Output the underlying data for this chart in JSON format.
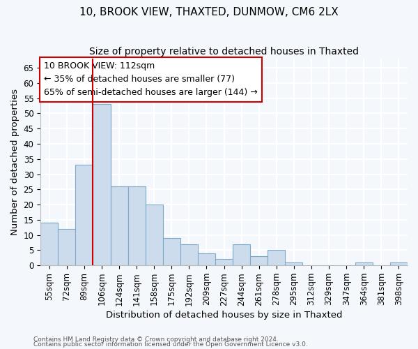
{
  "title1": "10, BROOK VIEW, THAXTED, DUNMOW, CM6 2LX",
  "title2": "Size of property relative to detached houses in Thaxted",
  "xlabel": "Distribution of detached houses by size in Thaxted",
  "ylabel": "Number of detached properties",
  "categories": [
    "55sqm",
    "72sqm",
    "89sqm",
    "106sqm",
    "124sqm",
    "141sqm",
    "158sqm",
    "175sqm",
    "192sqm",
    "209sqm",
    "227sqm",
    "244sqm",
    "261sqm",
    "278sqm",
    "295sqm",
    "312sqm",
    "329sqm",
    "347sqm",
    "364sqm",
    "381sqm",
    "398sqm"
  ],
  "values": [
    14,
    12,
    33,
    53,
    26,
    26,
    20,
    9,
    7,
    4,
    2,
    7,
    3,
    5,
    1,
    0,
    0,
    0,
    1,
    0,
    1
  ],
  "bar_color": "#ccdcec",
  "bar_edge_color": "#7aaac8",
  "vline_index": 3,
  "vline_color": "#cc0000",
  "annotation_line1": "10 BROOK VIEW: 112sqm",
  "annotation_line2": "← 35% of detached houses are smaller (77)",
  "annotation_line3": "65% of semi-detached houses are larger (144) →",
  "annotation_box_color": "#ffffff",
  "annotation_box_edge": "#cc0000",
  "ylim": [
    0,
    68
  ],
  "yticks": [
    0,
    5,
    10,
    15,
    20,
    25,
    30,
    35,
    40,
    45,
    50,
    55,
    60,
    65
  ],
  "footnote1": "Contains HM Land Registry data © Crown copyright and database right 2024.",
  "footnote2": "Contains public sector information licensed under the Open Government Licence v3.0.",
  "background_color": "#f4f7fb",
  "plot_bg_color": "#f4f7fb",
  "grid_color": "#ffffff",
  "title_fontsize": 11,
  "subtitle_fontsize": 10,
  "axis_label_fontsize": 9.5,
  "tick_fontsize": 8.5
}
